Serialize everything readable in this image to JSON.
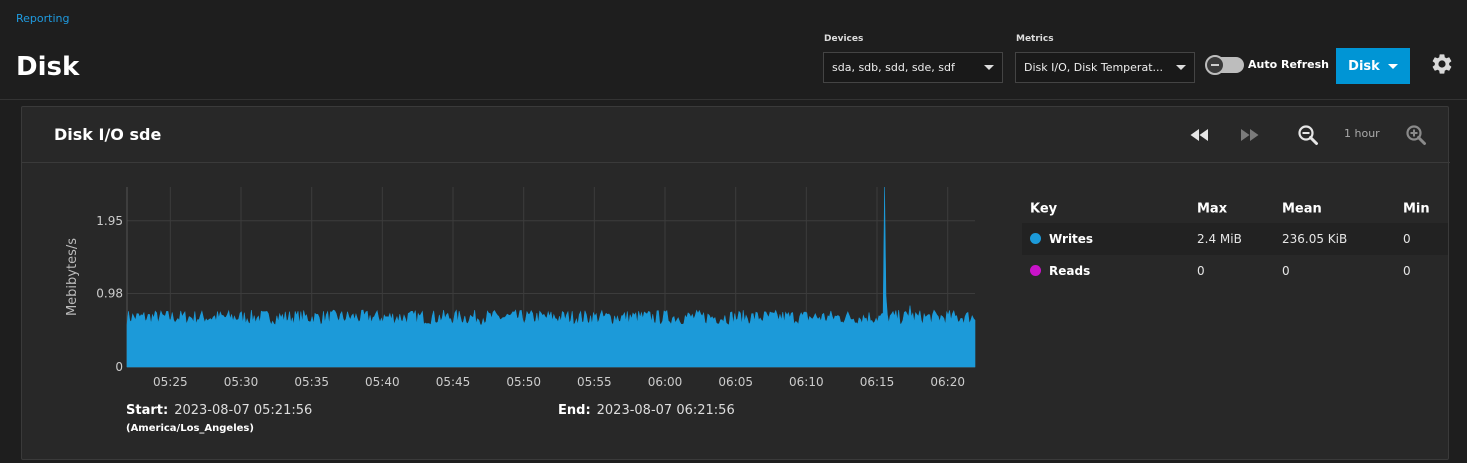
{
  "breadcrumb": "Reporting",
  "page_title": "Disk",
  "filters": {
    "devices_label": "Devices",
    "devices_value": "sda, sdb, sdd, sde, sdf",
    "metrics_label": "Metrics",
    "metrics_value": "Disk I/O, Disk Temperat..."
  },
  "auto_refresh_label": "Auto Refresh",
  "disk_button_label": "Disk",
  "card": {
    "title": "Disk I/O sde",
    "range_label": "1 hour",
    "start_label": "Start:",
    "start_value": "2023-08-07 05:21:56",
    "timezone": "(America/Los_Angeles)",
    "end_label": "End:",
    "end_value": "2023-08-07 06:21:56"
  },
  "legend": {
    "headers": {
      "key": "Key",
      "max": "Max",
      "mean": "Mean",
      "min": "Min"
    },
    "rows": [
      {
        "name": "Writes",
        "color": "#1c9ad9",
        "max": "2.4 MiB",
        "mean": "236.05 KiB",
        "min": "0"
      },
      {
        "name": "Reads",
        "color": "#c913c9",
        "max": "0",
        "mean": "0",
        "min": "0"
      }
    ]
  },
  "chart_data": {
    "type": "area",
    "ylabel": "Mebibytes/s",
    "y_ticks": [
      0,
      0.98,
      1.95
    ],
    "y_tick_labels": [
      "0",
      "0.98",
      "1.95"
    ],
    "ylim": [
      0,
      2.4
    ],
    "x_ticks": [
      "05:25",
      "05:30",
      "05:35",
      "05:40",
      "05:45",
      "05:50",
      "05:55",
      "06:00",
      "06:05",
      "06:10",
      "06:15",
      "06:20"
    ],
    "x_start": "05:21:56",
    "x_end": "06:21:56",
    "grid": true,
    "series": [
      {
        "name": "Writes",
        "color": "#1c9ad9",
        "baseline": 0.66,
        "noise": 0.1,
        "spikes": [
          {
            "time": "06:15:30",
            "value": 2.4
          },
          {
            "time": "06:15:40",
            "value": 0.95
          },
          {
            "time": "06:17:20",
            "value": 0.82
          }
        ]
      },
      {
        "name": "Reads",
        "color": "#c913c9",
        "baseline": 0,
        "noise": 0,
        "spikes": []
      }
    ]
  }
}
